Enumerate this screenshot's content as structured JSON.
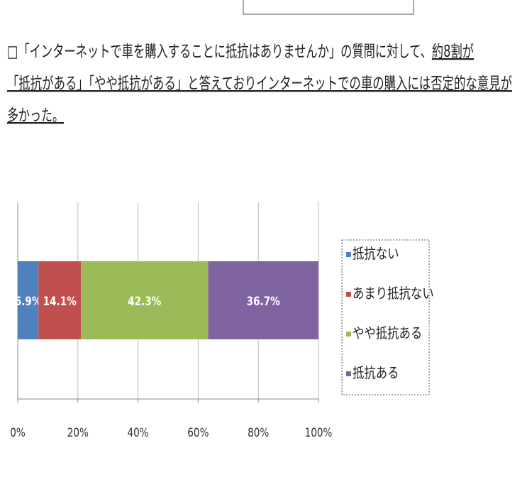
{
  "note": {
    "lines": [
      [
        {
          "text": "□「インターネットで車を購入することに抵抗はありませんか」の質問に対して、",
          "underline": false
        },
        {
          "text": "約8割が",
          "underline": true
        }
      ],
      [
        {
          "text": "「抵抗がある」「やや抵抗がある」と答えておりインターネットでの車の購入には否定的な意見が",
          "underline": true
        }
      ],
      [
        {
          "text": "多かった。",
          "underline": true
        }
      ]
    ]
  },
  "chart_data": {
    "type": "stacked_barh",
    "categories": [
      null
    ],
    "series": [
      {
        "name": "抵抗ない",
        "color": "#4f81bd",
        "values": [
          6.9
        ],
        "value_labels": [
          "6.9%"
        ]
      },
      {
        "name": "あまり抵抗ない",
        "color": "#c0504d",
        "values": [
          14.1
        ],
        "value_labels": [
          "14.1%"
        ]
      },
      {
        "name": "やや抵抗ある",
        "color": "#9bbb59",
        "values": [
          42.3
        ],
        "value_labels": [
          "42.3%"
        ]
      },
      {
        "name": "抵抗ある",
        "color": "#8064a2",
        "values": [
          36.7
        ],
        "value_labels": [
          "36.7%"
        ]
      }
    ],
    "xlim": [
      0,
      100
    ],
    "xticks": [
      {
        "value": 0,
        "label": "0%"
      },
      {
        "value": 20,
        "label": "20%"
      },
      {
        "value": 40,
        "label": "40%"
      },
      {
        "value": 60,
        "label": "60%"
      },
      {
        "value": 80,
        "label": "80%"
      },
      {
        "value": 100,
        "label": "100%"
      }
    ],
    "grid": true,
    "legend": "right"
  }
}
